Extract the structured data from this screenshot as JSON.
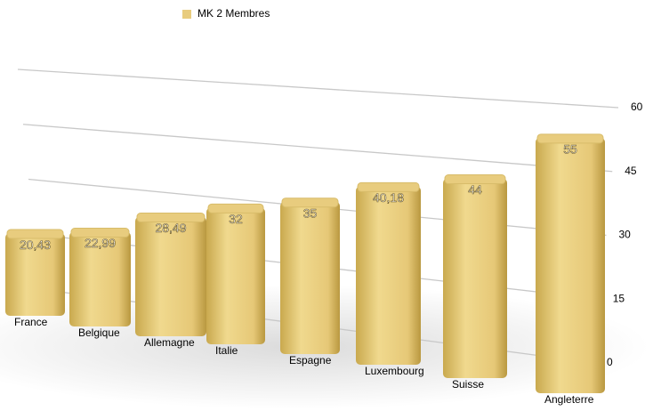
{
  "chart_data": {
    "type": "bar",
    "categories": [
      "France",
      "Belgique",
      "Allemagne",
      "Italie",
      "Espagne",
      "Luxembourg",
      "Suisse",
      "Angleterre"
    ],
    "series": [
      {
        "name": "MK 2 Membres",
        "color": "#e8cc7e",
        "values": [
          20.43,
          22.99,
          28.49,
          32,
          35,
          40.18,
          44,
          55
        ],
        "value_labels": [
          "20,43",
          "22,99",
          "28,49",
          "32",
          "35",
          "40,18",
          "44",
          "55"
        ]
      }
    ],
    "ylim": [
      0,
      60
    ],
    "yticks": [
      0,
      15,
      30,
      45,
      60
    ],
    "grid": true
  }
}
